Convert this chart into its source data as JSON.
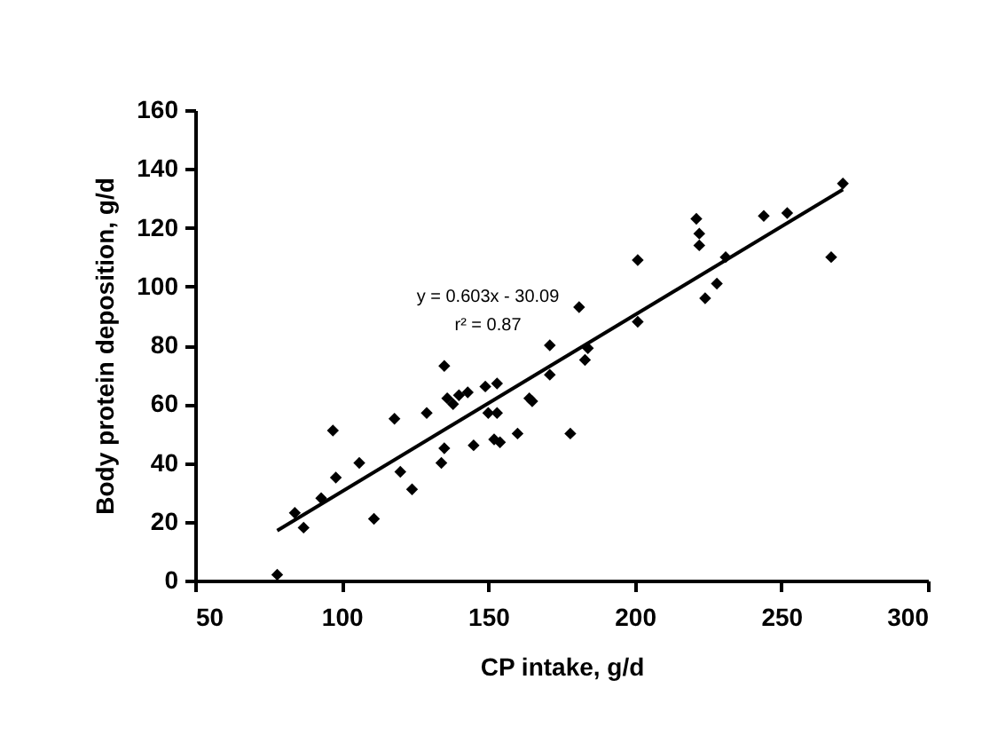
{
  "chart_data": {
    "type": "scatter",
    "xlabel": "CP intake, g/d",
    "ylabel": "Body protein deposition, g/d",
    "xlim": [
      50,
      300
    ],
    "xticks": [
      50,
      100,
      150,
      200,
      250,
      300
    ],
    "ylim": [
      0,
      160
    ],
    "yticks": [
      0,
      20,
      40,
      60,
      80,
      100,
      120,
      140,
      160
    ],
    "grid": false,
    "marker": "diamond",
    "annotations": [
      "y = 0.603x - 30.09",
      "r² = 0.87"
    ],
    "series": [
      {
        "color": "#000000",
        "x": [
          78,
          84,
          87,
          93,
          97,
          98,
          106,
          111,
          118,
          120,
          124,
          129,
          134,
          135,
          135,
          136,
          138,
          140,
          143,
          145,
          149,
          150,
          153,
          153,
          152,
          154,
          160,
          164,
          165,
          171,
          171,
          181,
          184,
          183,
          178,
          201,
          201,
          221,
          222,
          222,
          224,
          228,
          231,
          244,
          252,
          267,
          271
        ],
        "values": [
          2,
          23,
          18,
          28,
          51,
          35,
          40,
          21,
          55,
          37,
          31,
          57,
          40,
          45,
          73,
          62,
          60,
          63,
          64,
          46,
          66,
          57,
          67,
          57,
          48,
          47,
          50,
          62,
          61,
          70,
          80,
          93,
          79,
          75,
          50,
          109,
          88,
          123,
          118,
          114,
          96,
          101,
          110,
          124,
          125,
          110,
          135
        ]
      },
      {
        "type": "line",
        "color": "#000000",
        "line_style": "solid",
        "marker": "none",
        "x": [
          78,
          271
        ],
        "values": [
          17,
          133
        ]
      }
    ]
  }
}
